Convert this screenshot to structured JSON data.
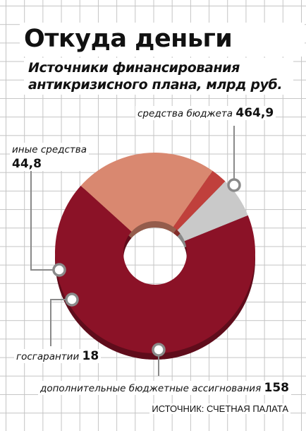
{
  "title": "Откуда деньги",
  "subtitle": "Источники финансирования антикризисного плана, млрд руб.",
  "source": "ИСТОЧНИК: СЧЕТНАЯ ПАЛАТА",
  "colors": {
    "budget": "#8b1227",
    "additional": "#d98870",
    "guarantees": "#c0403c",
    "other": "#c9c9c9",
    "grid": "#c4c4c4"
  },
  "chart_data": {
    "type": "pie",
    "title": "Откуда деньги",
    "subtitle": "Источники финансирования антикризисного плана, млрд руб.",
    "unit": "млрд руб.",
    "donut": true,
    "slices": [
      {
        "label": "средства бюджета",
        "value": 464.9,
        "value_label": "464,9",
        "color": "#8b1227"
      },
      {
        "label": "дополнительные бюджетные ассигнования",
        "value": 158,
        "value_label": "158",
        "color": "#d98870"
      },
      {
        "label": "госгарантии",
        "value": 18,
        "value_label": "18",
        "color": "#c0403c"
      },
      {
        "label": "иные средства",
        "value": 44.8,
        "value_label": "44,8",
        "color": "#c9c9c9"
      }
    ]
  }
}
